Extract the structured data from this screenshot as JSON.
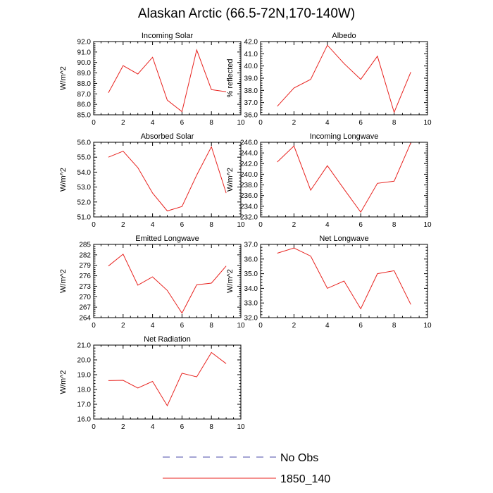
{
  "title": "Alaskan Arctic (66.5-72N,170-140W)",
  "legend": {
    "placement": "bottom-center",
    "entries": [
      {
        "label": "No Obs",
        "color": "#4a4aa8",
        "dash": true
      },
      {
        "label": "1850_140",
        "color": "#e8231f",
        "dash": false
      }
    ]
  },
  "chart_data": [
    {
      "type": "line",
      "title": "Incoming Solar",
      "xlabel": "",
      "ylabel": "W/m^2",
      "xlim": [
        0,
        10
      ],
      "xticks": [
        "0",
        "2",
        "4",
        "6",
        "8",
        "10"
      ],
      "ylim": [
        85.0,
        92.0
      ],
      "yticks": [
        "85.0",
        "86.0",
        "87.0",
        "88.0",
        "89.0",
        "90.0",
        "91.0",
        "92.0"
      ],
      "x": [
        1,
        2,
        3,
        4,
        5,
        6,
        7,
        8,
        9
      ],
      "series": [
        {
          "name": "1850_140",
          "color": "#e8231f",
          "values": [
            87.1,
            89.7,
            88.9,
            90.5,
            86.4,
            85.3,
            91.2,
            87.4,
            87.2
          ]
        }
      ]
    },
    {
      "type": "line",
      "title": "Albedo",
      "xlabel": "",
      "ylabel": "% reflected",
      "xlim": [
        0,
        10
      ],
      "xticks": [
        "0",
        "2",
        "4",
        "6",
        "8",
        "10"
      ],
      "ylim": [
        36.0,
        42.0
      ],
      "yticks": [
        "36.0",
        "37.0",
        "38.0",
        "39.0",
        "40.0",
        "41.0",
        "42.0"
      ],
      "x": [
        1,
        2,
        3,
        4,
        5,
        6,
        7,
        8,
        9
      ],
      "series": [
        {
          "name": "1850_140",
          "color": "#e8231f",
          "values": [
            36.7,
            38.2,
            38.9,
            41.7,
            40.2,
            38.9,
            40.8,
            36.2,
            39.5
          ]
        }
      ]
    },
    {
      "type": "line",
      "title": "Absorbed Solar",
      "xlabel": "",
      "ylabel": "W/m^2",
      "xlim": [
        0,
        10
      ],
      "xticks": [
        "0",
        "2",
        "4",
        "6",
        "8",
        "10"
      ],
      "ylim": [
        51.0,
        56.0
      ],
      "yticks": [
        "51.0",
        "52.0",
        "53.0",
        "54.0",
        "55.0",
        "56.0"
      ],
      "x": [
        1,
        2,
        3,
        4,
        5,
        6,
        7,
        8,
        9
      ],
      "series": [
        {
          "name": "1850_140",
          "color": "#e8231f",
          "values": [
            55.0,
            55.4,
            54.3,
            52.6,
            51.4,
            51.7,
            53.8,
            55.7,
            52.6
          ]
        }
      ]
    },
    {
      "type": "line",
      "title": "Incoming Longwave",
      "xlabel": "",
      "ylabel": "W/m^2",
      "xlim": [
        0,
        10
      ],
      "xticks": [
        "0",
        "2",
        "4",
        "6",
        "8",
        "10"
      ],
      "ylim": [
        232.0,
        246.0
      ],
      "yticks": [
        "232.0",
        "234.0",
        "236.0",
        "238.0",
        "240.0",
        "242.0",
        "244.0",
        "246.0"
      ],
      "x": [
        1,
        2,
        3,
        4,
        5,
        6,
        7,
        8,
        9
      ],
      "series": [
        {
          "name": "1850_140",
          "color": "#e8231f",
          "values": [
            242.3,
            245.3,
            237.0,
            241.6,
            237.2,
            232.9,
            238.3,
            238.7,
            245.9
          ]
        }
      ]
    },
    {
      "type": "line",
      "title": "Emitted Longwave",
      "xlabel": "",
      "ylabel": "W/m^2",
      "xlim": [
        0,
        10
      ],
      "xticks": [
        "0",
        "2",
        "4",
        "6",
        "8",
        "10"
      ],
      "ylim": [
        264,
        285
      ],
      "yticks": [
        "264",
        "267",
        "270",
        "273",
        "276",
        "279",
        "282",
        "285"
      ],
      "x": [
        1,
        2,
        3,
        4,
        5,
        6,
        7,
        8,
        9
      ],
      "series": [
        {
          "name": "1850_140",
          "color": "#e8231f",
          "values": [
            278.8,
            282.2,
            273.3,
            275.7,
            271.8,
            265.3,
            273.4,
            273.9,
            278.8
          ]
        }
      ]
    },
    {
      "type": "line",
      "title": "Net Longwave",
      "xlabel": "",
      "ylabel": "W/m^2",
      "xlim": [
        0,
        10
      ],
      "xticks": [
        "0",
        "2",
        "4",
        "6",
        "8",
        "10"
      ],
      "ylim": [
        32.0,
        37.0
      ],
      "yticks": [
        "32.0",
        "33.0",
        "34.0",
        "35.0",
        "36.0",
        "37.0"
      ],
      "x": [
        1,
        2,
        3,
        4,
        5,
        6,
        7,
        8,
        9
      ],
      "series": [
        {
          "name": "1850_140",
          "color": "#e8231f",
          "values": [
            36.4,
            36.75,
            36.2,
            34.0,
            34.5,
            32.6,
            35.0,
            35.2,
            32.9
          ]
        }
      ]
    },
    {
      "type": "line",
      "title": "Net Radiation",
      "xlabel": "",
      "ylabel": "W/m^2",
      "xlim": [
        0,
        10
      ],
      "xticks": [
        "0",
        "2",
        "4",
        "6",
        "8",
        "10"
      ],
      "ylim": [
        16.0,
        21.0
      ],
      "yticks": [
        "16.0",
        "17.0",
        "18.0",
        "19.0",
        "20.0",
        "21.0"
      ],
      "x": [
        1,
        2,
        3,
        4,
        5,
        6,
        7,
        8,
        9
      ],
      "series": [
        {
          "name": "1850_140",
          "color": "#e8231f",
          "values": [
            18.6,
            18.62,
            18.1,
            18.55,
            16.9,
            19.1,
            18.85,
            20.5,
            19.75
          ]
        }
      ]
    }
  ]
}
